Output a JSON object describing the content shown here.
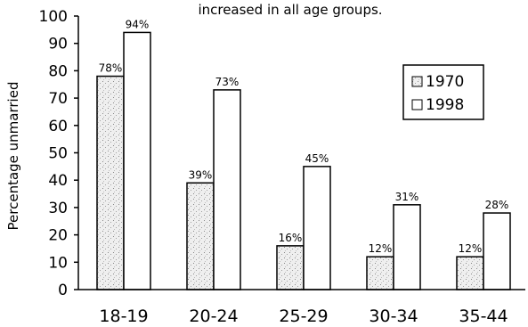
{
  "chart_data": {
    "type": "bar",
    "title": "increased in all age groups.",
    "ylabel": "Percentage unmarried",
    "xlabel": "",
    "ylim": [
      0,
      100
    ],
    "yticks": [
      0,
      10,
      20,
      30,
      40,
      50,
      60,
      70,
      80,
      90,
      100
    ],
    "categories": [
      "18-19",
      "20-24",
      "25-29",
      "30-34",
      "35-44"
    ],
    "series": [
      {
        "name": "1970",
        "values": [
          78,
          39,
          16,
          12,
          12
        ],
        "labels": [
          "78%",
          "39%",
          "16%",
          "12%",
          "12%"
        ],
        "fill": "#d9d9d9"
      },
      {
        "name": "1998",
        "values": [
          94,
          73,
          45,
          31,
          28
        ],
        "labels": [
          "94%",
          "73%",
          "45%",
          "31%",
          "28%"
        ],
        "fill": "#ffffff"
      }
    ],
    "legend_position": "right",
    "grid": false
  }
}
